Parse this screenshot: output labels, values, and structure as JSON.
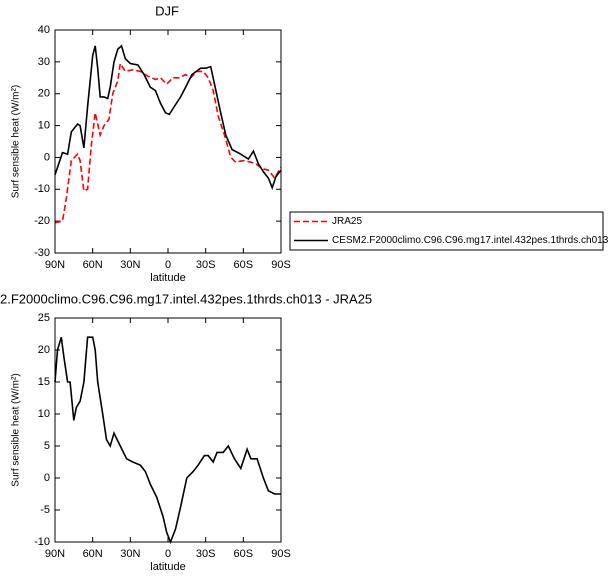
{
  "chart_data": [
    {
      "type": "line",
      "title": "DJF",
      "xlabel": "latitude",
      "ylabel": "Surf sensible heat (W/m²)",
      "xlim": [
        90,
        -90
      ],
      "ylim": [
        -30,
        40
      ],
      "xticks": [
        {
          "value": 90,
          "label": "90N"
        },
        {
          "value": 60,
          "label": "60N"
        },
        {
          "value": 30,
          "label": "30N"
        },
        0,
        {
          "value": -30,
          "label": "30S"
        },
        {
          "value": -60,
          "label": "60S"
        },
        {
          "value": -90,
          "label": "90S"
        }
      ],
      "yticks": [
        -30,
        -20,
        -10,
        0,
        10,
        20,
        30,
        40
      ],
      "legend": "right",
      "series": [
        {
          "name": "JRA25",
          "color": "#ff0000",
          "style": "dashed",
          "x": [
            90,
            84,
            81,
            77,
            72,
            70,
            67,
            64,
            61,
            58,
            54,
            51,
            47,
            44,
            40,
            38,
            34,
            28,
            22,
            16,
            10,
            6,
            1,
            -4,
            -9,
            -14,
            -18,
            -23,
            -28,
            -32,
            -36,
            -40,
            -45,
            -50,
            -54,
            -60,
            -66,
            -70,
            -75,
            -80,
            -85,
            -90
          ],
          "values": [
            -20.5,
            -20,
            -13,
            -1,
            1,
            -1,
            -10.5,
            -10,
            4,
            14,
            7,
            10,
            12,
            20,
            24,
            29.5,
            27,
            27.5,
            27,
            25.5,
            24.5,
            25,
            23,
            25,
            25,
            26,
            25,
            27,
            27,
            25,
            21,
            13,
            7,
            0,
            -1.5,
            -1,
            -1.5,
            -2,
            -3.5,
            -4,
            -6.5,
            -3
          ]
        },
        {
          "name": "CESM2.F2000climo.C96.C96.mg17.intel.432pes.1thrds.ch013",
          "color": "#000000",
          "style": "solid",
          "x": [
            90,
            84,
            80,
            77,
            72,
            70,
            67,
            64,
            60,
            58,
            56,
            54,
            51,
            48,
            46,
            43,
            40,
            37,
            34,
            30,
            24,
            19,
            14,
            10,
            6,
            2,
            -1,
            -5,
            -10,
            -14,
            -19,
            -26,
            -30,
            -34,
            -37,
            -42,
            -46,
            -51,
            -58,
            -64,
            -68,
            -72,
            -76,
            -80,
            -83,
            -86,
            -90
          ],
          "values": [
            -5.5,
            1.5,
            1,
            8,
            10.5,
            10,
            3,
            16,
            32,
            35,
            28,
            19,
            19,
            18.5,
            22,
            30,
            34,
            35,
            31,
            29.5,
            29,
            26,
            22,
            21,
            17,
            14,
            13.5,
            16,
            19,
            22,
            26,
            28,
            28,
            28.5,
            23,
            14,
            7,
            2.5,
            1,
            -0.5,
            2,
            -2,
            -4.5,
            -6.5,
            -9.5,
            -6,
            -4
          ]
        }
      ]
    },
    {
      "type": "line",
      "title": "2.F2000climo.C96.C96.mg17.intel.432pes.1thrds.ch013 - JRA25",
      "xlabel": "latitude",
      "ylabel": "Surf sensible heat (W/m²)",
      "xlim": [
        90,
        -90
      ],
      "ylim": [
        -10,
        25
      ],
      "xticks": [
        {
          "value": 90,
          "label": "90N"
        },
        {
          "value": 60,
          "label": "60N"
        },
        {
          "value": 30,
          "label": "30N"
        },
        0,
        {
          "value": -30,
          "label": "30S"
        },
        {
          "value": -60,
          "label": "60S"
        },
        {
          "value": -90,
          "label": "90S"
        }
      ],
      "yticks": [
        -10,
        -5,
        0,
        5,
        10,
        15,
        20,
        25
      ],
      "series": [
        {
          "color": "#000000",
          "style": "solid",
          "x": [
            90,
            88,
            85,
            83,
            80,
            78,
            75,
            73,
            70,
            67,
            64,
            60,
            58,
            56,
            52,
            49,
            46,
            43,
            38,
            33,
            28,
            22,
            18,
            14,
            9,
            4,
            1,
            -2,
            -6,
            -10,
            -15,
            -20,
            -24,
            -29,
            -32,
            -36,
            -39,
            -44,
            -48,
            -53,
            -58,
            -63,
            -66,
            -71,
            -76,
            -80,
            -85,
            -90
          ],
          "values": [
            15,
            20,
            22,
            19,
            15,
            15,
            9,
            11,
            12,
            15,
            22,
            22,
            20,
            15,
            10,
            6,
            5,
            7,
            5,
            3,
            2.5,
            2,
            1,
            -1,
            -3,
            -6,
            -8.5,
            -10,
            -8,
            -4.5,
            0,
            1,
            2,
            3.5,
            3.5,
            2.5,
            4,
            4,
            5,
            3,
            1.5,
            4.5,
            3,
            3,
            0,
            -2,
            -2.5,
            -2.5
          ]
        }
      ]
    }
  ]
}
